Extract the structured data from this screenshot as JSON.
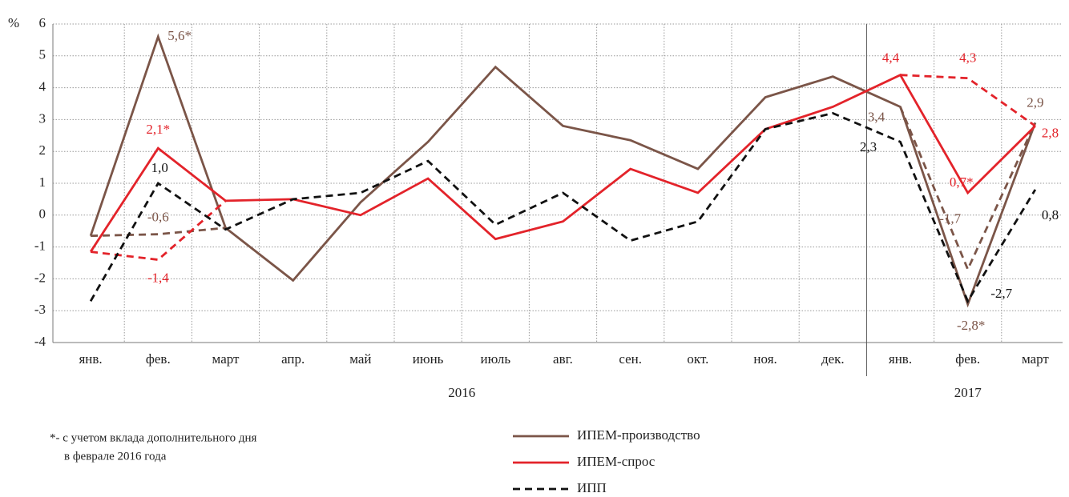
{
  "chart_data": {
    "type": "line",
    "y_unit": "%",
    "categories": [
      "янв.",
      "фев.",
      "март",
      "апр.",
      "май",
      "июнь",
      "июль",
      "авг.",
      "сен.",
      "окт.",
      "ноя.",
      "дек.",
      "янв.",
      "фев.",
      "март"
    ],
    "year_labels": [
      "2016",
      "2017"
    ],
    "ylim": [
      -4,
      6
    ],
    "yticks": [
      -4,
      -3,
      -2,
      -1,
      0,
      1,
      2,
      3,
      4,
      5,
      6
    ],
    "grid": true,
    "series": [
      {
        "name": "ИПЕМ-производство",
        "color": "#7b5548",
        "dashed": false,
        "values": [
          -0.65,
          5.6,
          -0.4,
          -2.05,
          0.4,
          2.3,
          4.65,
          2.8,
          2.35,
          1.45,
          3.7,
          4.35,
          3.4,
          -2.8,
          2.9
        ],
        "value_labels": [
          null,
          "5,6*",
          null,
          null,
          null,
          null,
          null,
          null,
          null,
          null,
          null,
          null,
          "3,4",
          "-2,8*",
          "2,9"
        ],
        "adjusted_values": [
          -0.65,
          -0.6,
          -0.4,
          null,
          null,
          null,
          null,
          null,
          null,
          null,
          null,
          null,
          3.4,
          -1.7,
          2.9
        ],
        "adjusted_value_labels": [
          null,
          "-0,6",
          null,
          null,
          null,
          null,
          null,
          null,
          null,
          null,
          null,
          null,
          null,
          "-1,7",
          null
        ]
      },
      {
        "name": "ИПЕМ-спрос",
        "color": "#e3232a",
        "dashed": false,
        "values": [
          -1.15,
          2.1,
          0.45,
          0.5,
          0.0,
          1.15,
          -0.75,
          -0.2,
          1.45,
          0.7,
          2.7,
          3.4,
          4.4,
          0.7,
          2.8
        ],
        "value_labels": [
          null,
          "2,1*",
          null,
          null,
          null,
          null,
          null,
          null,
          null,
          null,
          null,
          null,
          "4,4",
          "0,7*",
          "2,8"
        ],
        "adjusted_values": [
          -1.15,
          -1.4,
          0.45,
          null,
          null,
          null,
          null,
          null,
          null,
          null,
          null,
          null,
          4.4,
          4.3,
          2.8
        ],
        "adjusted_value_labels": [
          null,
          "-1,4",
          null,
          null,
          null,
          null,
          null,
          null,
          null,
          null,
          null,
          null,
          null,
          "4,3",
          null
        ]
      },
      {
        "name": "ИПП",
        "color": "#111111",
        "dashed": true,
        "values": [
          -2.7,
          1.0,
          -0.45,
          0.5,
          0.7,
          1.7,
          -0.3,
          0.7,
          -0.8,
          -0.2,
          2.7,
          3.2,
          2.3,
          -2.7,
          0.8
        ],
        "value_labels": [
          null,
          "1,0",
          null,
          null,
          null,
          null,
          null,
          null,
          null,
          null,
          null,
          null,
          "2,3",
          "-2,7",
          "0,8"
        ]
      }
    ],
    "note": [
      "*- с учетом вклада дополнительного дня",
      "в феврале 2016 года"
    ]
  }
}
